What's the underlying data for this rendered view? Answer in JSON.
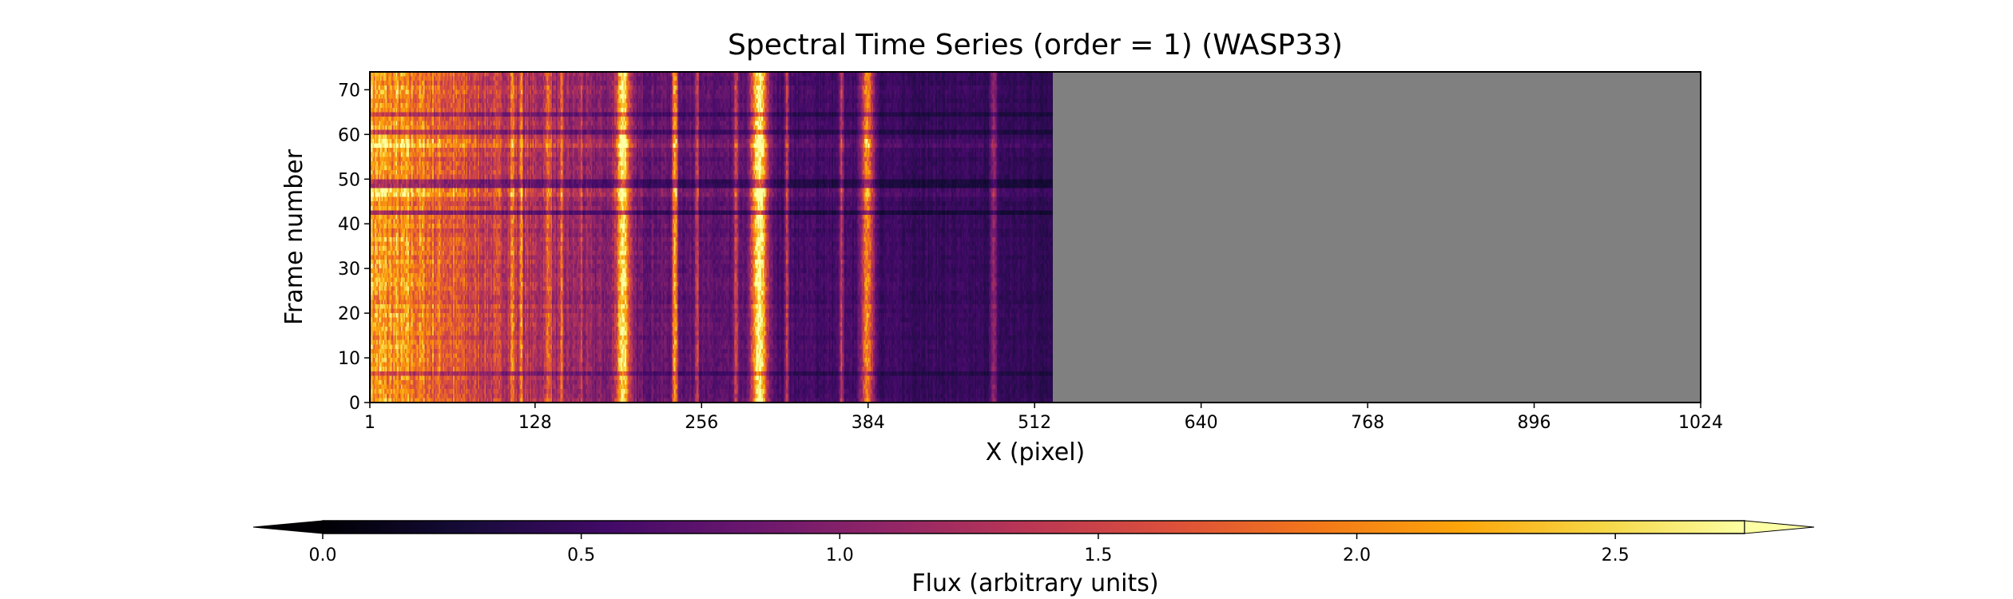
{
  "chart_data": [
    {
      "type": "heatmap",
      "title": "Spectral Time Series (order = 1) (WASP33)",
      "xlabel": "X (pixel)",
      "ylabel": "Frame number",
      "xlim": [
        1,
        1024
      ],
      "ylim": [
        0,
        74
      ],
      "x_ticks": [
        "1",
        "128",
        "256",
        "384",
        "512",
        "640",
        "768",
        "896",
        "1024"
      ],
      "x_tick_values": [
        1,
        128,
        256,
        384,
        512,
        640,
        768,
        896,
        1024
      ],
      "y_ticks": [
        "0",
        "10",
        "20",
        "30",
        "40",
        "50",
        "60",
        "70"
      ],
      "y_tick_values": [
        0,
        10,
        20,
        30,
        40,
        50,
        60,
        70
      ],
      "data_extent_x": [
        1,
        525
      ],
      "masked_region_color": "#808080",
      "colormap": "inferno",
      "n_frames": 74,
      "base_level": {
        "x": [
          1,
          40,
          80,
          128,
          170,
          210,
          250,
          330,
          420,
          525
        ],
        "flux": [
          2.2,
          1.95,
          1.55,
          1.3,
          1.05,
          0.85,
          0.75,
          0.6,
          0.5,
          0.45
        ]
      },
      "bright_columns": [
        {
          "x": 110,
          "width": 3,
          "flux": 0.7
        },
        {
          "x": 117,
          "width": 2,
          "flux": 1.0
        },
        {
          "x": 138,
          "width": 4,
          "flux": 0.8
        },
        {
          "x": 148,
          "width": 2,
          "flux": 0.7
        },
        {
          "x": 163,
          "width": 2,
          "flux": 0.45
        },
        {
          "x": 195,
          "width": 10,
          "flux": 1.8
        },
        {
          "x": 235,
          "width": 4,
          "flux": 1.5
        },
        {
          "x": 252,
          "width": 3,
          "flux": 0.9
        },
        {
          "x": 282,
          "width": 3,
          "flux": 1.0
        },
        {
          "x": 300,
          "width": 12,
          "flux": 2.2
        },
        {
          "x": 321,
          "width": 3,
          "flux": 0.8
        },
        {
          "x": 363,
          "width": 3,
          "flux": 0.9
        },
        {
          "x": 383,
          "width": 10,
          "flux": 1.5
        },
        {
          "x": 480,
          "width": 5,
          "flux": 0.6
        }
      ],
      "dim_frames": [
        {
          "frame": 6.5,
          "factor": 0.75
        },
        {
          "frame": 42.5,
          "factor": 0.55
        },
        {
          "frame": 49.0,
          "factor": 0.6
        },
        {
          "frame": 60.5,
          "factor": 0.65
        },
        {
          "frame": 64.5,
          "factor": 0.7
        }
      ],
      "bright_frames": [
        {
          "frame": 58.0,
          "factor": 1.2
        },
        {
          "frame": 47.0,
          "factor": 1.15
        }
      ]
    },
    {
      "type": "colorbar",
      "label": "Flux (arbitrary units)",
      "colormap": "inferno",
      "range": [
        0.0,
        2.75
      ],
      "ticks": [
        "0.0",
        "0.5",
        "1.0",
        "1.5",
        "2.0",
        "2.5"
      ],
      "tick_values": [
        0.0,
        0.5,
        1.0,
        1.5,
        2.0,
        2.5
      ],
      "extend": "both"
    }
  ]
}
